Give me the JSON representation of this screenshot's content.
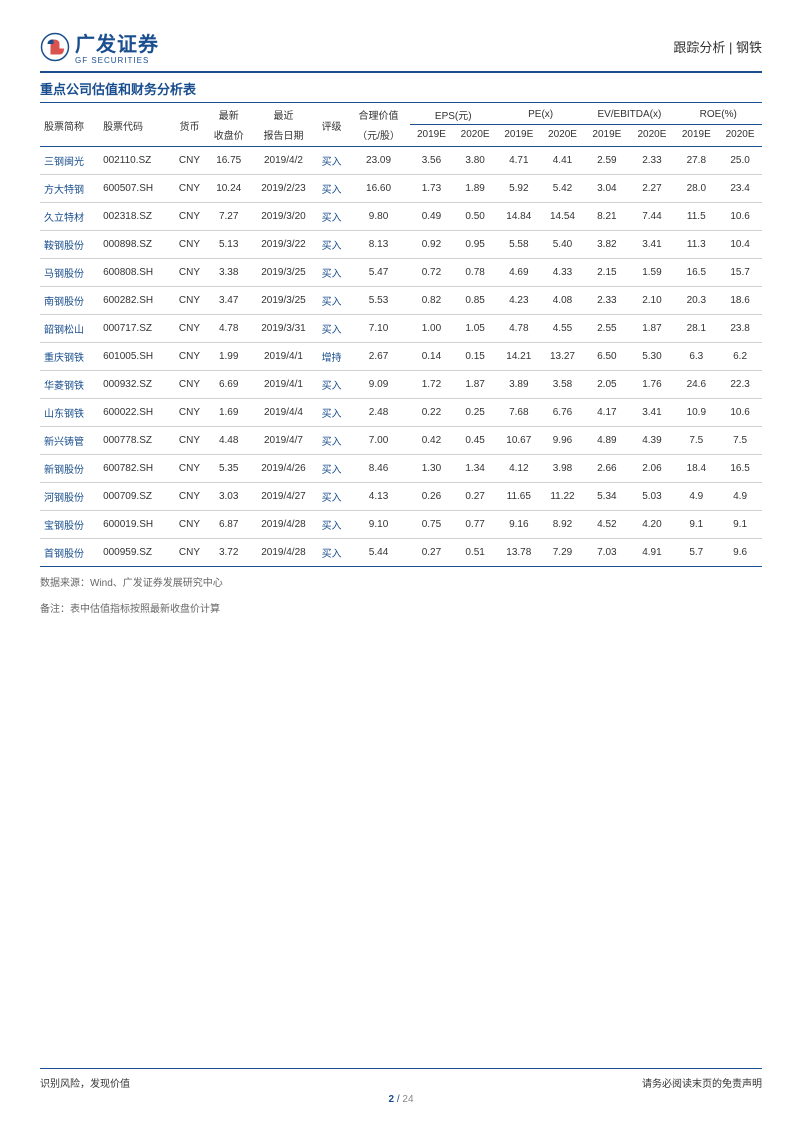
{
  "header": {
    "company_name": "广发证券",
    "company_sub": "GF SECURITIES",
    "category": "跟踪分析 | 钢铁"
  },
  "section_title": "重点公司估值和财务分析表",
  "columns": {
    "name": "股票简称",
    "code": "股票代码",
    "currency": "货币",
    "price_group": "最新",
    "price": "收盘价",
    "date_group": "最近",
    "date": "报告日期",
    "rating": "评级",
    "fair_group": "合理价值",
    "fair": "（元/股）",
    "eps": "EPS(元)",
    "pe": "PE(x)",
    "ev": "EV/EBITDA(x)",
    "roe": "ROE(%)",
    "y2019": "2019E",
    "y2020": "2020E"
  },
  "rows": [
    {
      "name": "三钢闽光",
      "code": "002110.SZ",
      "cur": "CNY",
      "price": "16.75",
      "date": "2019/4/2",
      "rating": "买入",
      "fair": "23.09",
      "eps19": "3.56",
      "eps20": "3.80",
      "pe19": "4.71",
      "pe20": "4.41",
      "ev19": "2.59",
      "ev20": "2.33",
      "roe19": "27.8",
      "roe20": "25.0"
    },
    {
      "name": "方大特钢",
      "code": "600507.SH",
      "cur": "CNY",
      "price": "10.24",
      "date": "2019/2/23",
      "rating": "买入",
      "fair": "16.60",
      "eps19": "1.73",
      "eps20": "1.89",
      "pe19": "5.92",
      "pe20": "5.42",
      "ev19": "3.04",
      "ev20": "2.27",
      "roe19": "28.0",
      "roe20": "23.4"
    },
    {
      "name": "久立特材",
      "code": "002318.SZ",
      "cur": "CNY",
      "price": "7.27",
      "date": "2019/3/20",
      "rating": "买入",
      "fair": "9.80",
      "eps19": "0.49",
      "eps20": "0.50",
      "pe19": "14.84",
      "pe20": "14.54",
      "ev19": "8.21",
      "ev20": "7.44",
      "roe19": "11.5",
      "roe20": "10.6"
    },
    {
      "name": "鞍钢股份",
      "code": "000898.SZ",
      "cur": "CNY",
      "price": "5.13",
      "date": "2019/3/22",
      "rating": "买入",
      "fair": "8.13",
      "eps19": "0.92",
      "eps20": "0.95",
      "pe19": "5.58",
      "pe20": "5.40",
      "ev19": "3.82",
      "ev20": "3.41",
      "roe19": "11.3",
      "roe20": "10.4"
    },
    {
      "name": "马钢股份",
      "code": "600808.SH",
      "cur": "CNY",
      "price": "3.38",
      "date": "2019/3/25",
      "rating": "买入",
      "fair": "5.47",
      "eps19": "0.72",
      "eps20": "0.78",
      "pe19": "4.69",
      "pe20": "4.33",
      "ev19": "2.15",
      "ev20": "1.59",
      "roe19": "16.5",
      "roe20": "15.7"
    },
    {
      "name": "南钢股份",
      "code": "600282.SH",
      "cur": "CNY",
      "price": "3.47",
      "date": "2019/3/25",
      "rating": "买入",
      "fair": "5.53",
      "eps19": "0.82",
      "eps20": "0.85",
      "pe19": "4.23",
      "pe20": "4.08",
      "ev19": "2.33",
      "ev20": "2.10",
      "roe19": "20.3",
      "roe20": "18.6"
    },
    {
      "name": "韶钢松山",
      "code": "000717.SZ",
      "cur": "CNY",
      "price": "4.78",
      "date": "2019/3/31",
      "rating": "买入",
      "fair": "7.10",
      "eps19": "1.00",
      "eps20": "1.05",
      "pe19": "4.78",
      "pe20": "4.55",
      "ev19": "2.55",
      "ev20": "1.87",
      "roe19": "28.1",
      "roe20": "23.8"
    },
    {
      "name": "重庆钢铁",
      "code": "601005.SH",
      "cur": "CNY",
      "price": "1.99",
      "date": "2019/4/1",
      "rating": "增持",
      "fair": "2.67",
      "eps19": "0.14",
      "eps20": "0.15",
      "pe19": "14.21",
      "pe20": "13.27",
      "ev19": "6.50",
      "ev20": "5.30",
      "roe19": "6.3",
      "roe20": "6.2"
    },
    {
      "name": "华菱钢铁",
      "code": "000932.SZ",
      "cur": "CNY",
      "price": "6.69",
      "date": "2019/4/1",
      "rating": "买入",
      "fair": "9.09",
      "eps19": "1.72",
      "eps20": "1.87",
      "pe19": "3.89",
      "pe20": "3.58",
      "ev19": "2.05",
      "ev20": "1.76",
      "roe19": "24.6",
      "roe20": "22.3"
    },
    {
      "name": "山东钢铁",
      "code": "600022.SH",
      "cur": "CNY",
      "price": "1.69",
      "date": "2019/4/4",
      "rating": "买入",
      "fair": "2.48",
      "eps19": "0.22",
      "eps20": "0.25",
      "pe19": "7.68",
      "pe20": "6.76",
      "ev19": "4.17",
      "ev20": "3.41",
      "roe19": "10.9",
      "roe20": "10.6"
    },
    {
      "name": "新兴铸管",
      "code": "000778.SZ",
      "cur": "CNY",
      "price": "4.48",
      "date": "2019/4/7",
      "rating": "买入",
      "fair": "7.00",
      "eps19": "0.42",
      "eps20": "0.45",
      "pe19": "10.67",
      "pe20": "9.96",
      "ev19": "4.89",
      "ev20": "4.39",
      "roe19": "7.5",
      "roe20": "7.5"
    },
    {
      "name": "新钢股份",
      "code": "600782.SH",
      "cur": "CNY",
      "price": "5.35",
      "date": "2019/4/26",
      "rating": "买入",
      "fair": "8.46",
      "eps19": "1.30",
      "eps20": "1.34",
      "pe19": "4.12",
      "pe20": "3.98",
      "ev19": "2.66",
      "ev20": "2.06",
      "roe19": "18.4",
      "roe20": "16.5"
    },
    {
      "name": "河钢股份",
      "code": "000709.SZ",
      "cur": "CNY",
      "price": "3.03",
      "date": "2019/4/27",
      "rating": "买入",
      "fair": "4.13",
      "eps19": "0.26",
      "eps20": "0.27",
      "pe19": "11.65",
      "pe20": "11.22",
      "ev19": "5.34",
      "ev20": "5.03",
      "roe19": "4.9",
      "roe20": "4.9"
    },
    {
      "name": "宝钢股份",
      "code": "600019.SH",
      "cur": "CNY",
      "price": "6.87",
      "date": "2019/4/28",
      "rating": "买入",
      "fair": "9.10",
      "eps19": "0.75",
      "eps20": "0.77",
      "pe19": "9.16",
      "pe20": "8.92",
      "ev19": "4.52",
      "ev20": "4.20",
      "roe19": "9.1",
      "roe20": "9.1"
    },
    {
      "name": "首钢股份",
      "code": "000959.SZ",
      "cur": "CNY",
      "price": "3.72",
      "date": "2019/4/28",
      "rating": "买入",
      "fair": "5.44",
      "eps19": "0.27",
      "eps20": "0.51",
      "pe19": "13.78",
      "pe20": "7.29",
      "ev19": "7.03",
      "ev20": "4.91",
      "roe19": "5.7",
      "roe20": "9.6"
    }
  ],
  "notes": {
    "source": "数据来源：Wind、广发证券发展研究中心",
    "remark": "备注：表中估值指标按照最新收盘价计算"
  },
  "footer": {
    "left": "识别风险，发现价值",
    "right": "请务必阅读末页的免责声明",
    "page_current": "2",
    "page_sep": " / ",
    "page_total": "24"
  }
}
